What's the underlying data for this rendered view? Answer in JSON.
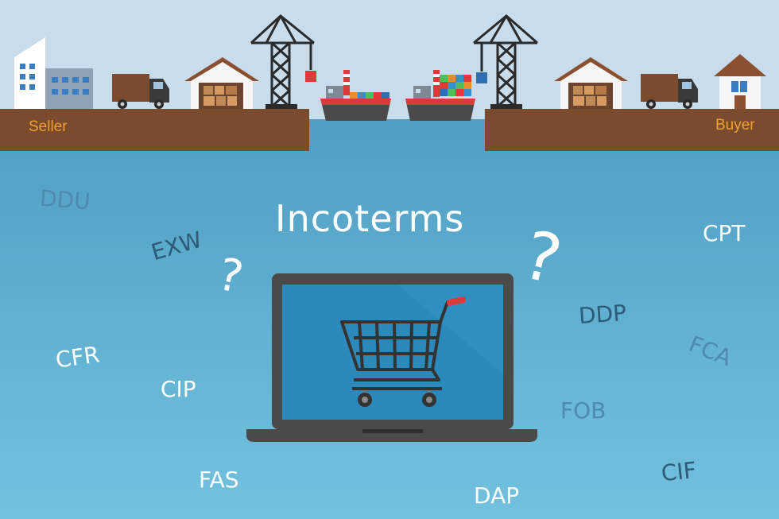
{
  "title": "Incoterms",
  "seller_label": "Seller",
  "buyer_label": "Buyer",
  "question_mark": "?",
  "terms": {
    "ddu": "DDU",
    "exw": "EXW",
    "cfr": "CFR",
    "cip": "CIP",
    "fas": "FAS",
    "cpt": "CPT",
    "ddp": "DDP",
    "fca": "FCA",
    "fob": "FOB",
    "cif": "CIF",
    "dap": "DAP"
  },
  "colors": {
    "sky": "#c9dcec",
    "water_top": "#4f9fc4",
    "water_bottom": "#6fc0dc",
    "ground": "#7a4b2c",
    "accent_orange": "#f0a030",
    "laptop_frame": "#4a4a48",
    "screen": "#2f8fc0"
  }
}
